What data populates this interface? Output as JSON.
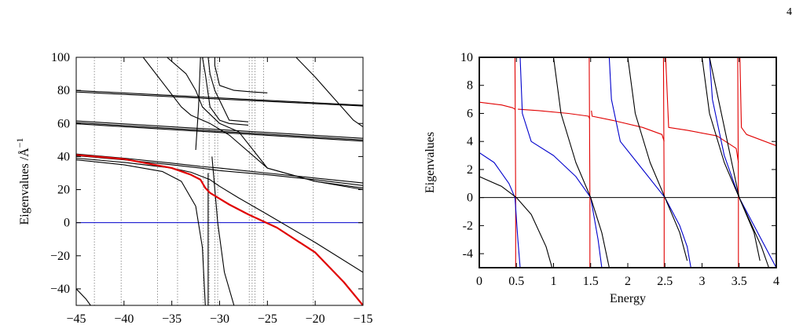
{
  "page": {
    "number": "4"
  },
  "chart_data": [
    {
      "type": "line",
      "title": "",
      "xlabel": "",
      "ylabel": "Eigenvalues /Å",
      "ylabel_superscript": "−1",
      "xlim": [
        -45,
        -15
      ],
      "ylim": [
        -50,
        100
      ],
      "x_ticks": [
        -45,
        -40,
        -35,
        -30,
        -25,
        -20,
        -15
      ],
      "x_tick_labels": [
        "−45",
        "−40",
        "−35",
        "−30",
        "−25",
        "−20",
        "−15"
      ],
      "y_ticks": [
        -40,
        -20,
        0,
        20,
        40,
        60,
        80,
        100
      ],
      "y_tick_labels": [
        "−40",
        "−20",
        "0",
        "20",
        "40",
        "60",
        "80",
        "100"
      ],
      "zero_line_color": "#0000cc",
      "highlight_color": "#e00000",
      "curve_color": "#000000",
      "vertical_dotted_lines_x": [
        -43.1,
        -40.3,
        -36.5,
        -34.4,
        -31.7,
        -31.1,
        -30.5,
        -30.2,
        -26.9,
        -26.6,
        -26.3,
        -25.4,
        -20.2
      ],
      "series": [
        {
          "color": "#000000",
          "x": [
            -45,
            -15
          ],
          "y": [
            79.9,
            71.0
          ]
        },
        {
          "color": "#000000",
          "x": [
            -45,
            -15
          ],
          "y": [
            79.0,
            70.5
          ]
        },
        {
          "color": "#000000",
          "x": [
            -45,
            -15
          ],
          "y": [
            61.5,
            51.0
          ]
        },
        {
          "color": "#000000",
          "x": [
            -45,
            -15
          ],
          "y": [
            60.5,
            50.0
          ]
        },
        {
          "color": "#000000",
          "x": [
            -45,
            -15
          ],
          "y": [
            59.8,
            49.3
          ]
        },
        {
          "color": "#000000",
          "x": [
            -45,
            -40,
            -35,
            -32,
            -30,
            -28,
            -25,
            -20,
            -15
          ],
          "y": [
            41.5,
            39,
            36,
            34,
            33,
            31.8,
            30,
            27,
            24
          ]
        },
        {
          "color": "#000000",
          "x": [
            -45,
            -40,
            -35,
            -32,
            -30,
            -28,
            -25,
            -20,
            -15
          ],
          "y": [
            40.5,
            38,
            35,
            33,
            31.5,
            30.5,
            29,
            26,
            22.5
          ]
        },
        {
          "color": "#000000",
          "x": [
            -45,
            -40,
            -35,
            -33,
            -31,
            -30,
            -28,
            -25,
            -20,
            -15
          ],
          "y": [
            39,
            36.5,
            33,
            30.5,
            26,
            22,
            15,
            5,
            -12,
            -30
          ]
        },
        {
          "color": "#000000",
          "x": [
            -45,
            -40,
            -36,
            -34,
            -32.5,
            -31.8,
            -31.5
          ],
          "y": [
            38,
            35,
            31,
            25,
            10,
            -15,
            -50
          ]
        },
        {
          "color": "#000000",
          "x": [
            -31.2,
            -31.2
          ],
          "y": [
            -50,
            30
          ]
        },
        {
          "color": "#000000",
          "x": [
            -38,
            -36,
            -34,
            -33,
            -31,
            -29,
            -25,
            -20,
            -15
          ],
          "y": [
            100,
            85,
            70,
            65,
            60,
            53,
            33,
            25,
            21
          ]
        },
        {
          "color": "#000000",
          "x": [
            -35.5,
            -33.5,
            -32.5,
            -31.8,
            -30,
            -28,
            -25,
            -20,
            -15
          ],
          "y": [
            100,
            90,
            80,
            70,
            60,
            55,
            33,
            25,
            20
          ]
        },
        {
          "color": "#000000",
          "x": [
            -30.5,
            -30.5,
            -30.0,
            -28.5,
            -26.5,
            -25
          ],
          "y": [
            100,
            95,
            83,
            80,
            79,
            78.5
          ]
        },
        {
          "color": "#000000",
          "x": [
            -31.2,
            -31.0,
            -30.5,
            -29,
            -27
          ],
          "y": [
            100,
            90,
            80,
            62,
            61
          ]
        },
        {
          "color": "#000000",
          "x": [
            -31.8,
            -31.5,
            -31.0,
            -30.0,
            -29,
            -27
          ],
          "y": [
            100,
            90,
            70,
            62,
            60,
            59
          ]
        },
        {
          "color": "#000000",
          "x": [
            -32.0,
            -32.2,
            -32.5
          ],
          "y": [
            100,
            70,
            44
          ]
        },
        {
          "color": "#000000",
          "x": [
            -22,
            -20,
            -18,
            -16,
            -15
          ],
          "y": [
            100,
            88,
            75,
            62,
            58
          ]
        },
        {
          "color": "#000000",
          "x": [
            -30.8,
            -30.2,
            -29.5,
            -28.5
          ],
          "y": [
            40,
            0,
            -30,
            -50
          ]
        },
        {
          "color": "#000000",
          "x": [
            -45,
            -44,
            -43.5
          ],
          "y": [
            -40,
            -46,
            -50
          ]
        },
        {
          "color": "#e00000",
          "x": [
            -45,
            -40,
            -35,
            -33,
            -32,
            -31.5,
            -31,
            -29,
            -27,
            -24,
            -20,
            -17,
            -15
          ],
          "y": [
            41,
            38.5,
            33,
            29,
            26,
            21,
            18,
            11,
            5,
            -3,
            -18,
            -36,
            -50
          ]
        }
      ]
    },
    {
      "type": "line",
      "title": "",
      "xlabel": "Energy",
      "ylabel": "Eigenvalues",
      "xlim": [
        0,
        4
      ],
      "ylim": [
        -5,
        10
      ],
      "x_ticks": [
        0,
        0.5,
        1,
        1.5,
        2,
        2.5,
        3,
        3.5,
        4
      ],
      "x_tick_labels": [
        "0",
        "0.5",
        "1",
        "1.5",
        "2",
        "2.5",
        "3",
        "3.5",
        "4"
      ],
      "y_ticks": [
        -4,
        -2,
        0,
        2,
        4,
        6,
        8,
        10
      ],
      "y_tick_labels": [
        "-4",
        "-2",
        "0",
        "2",
        "4",
        "6",
        "8",
        "10"
      ],
      "zero_line_color": "#000000",
      "series": [
        {
          "color": "#e00000",
          "x": [
            0,
            0.3,
            0.45,
            0.48
          ],
          "y": [
            6.8,
            6.6,
            6.4,
            6.3
          ]
        },
        {
          "color": "#e00000",
          "x": [
            0.48,
            0.49,
            0.49
          ],
          "y": [
            10,
            0,
            -5
          ]
        },
        {
          "color": "#e00000",
          "x": [
            0.52,
            0.8,
            1.2,
            1.47,
            1.49
          ],
          "y": [
            6.3,
            6.2,
            6.0,
            5.8,
            5.6
          ]
        },
        {
          "color": "#e00000",
          "x": [
            1.48,
            1.49,
            1.49
          ],
          "y": [
            10,
            0,
            -5
          ]
        },
        {
          "color": "#e00000",
          "x": [
            1.51,
            1.52,
            1.8,
            2.2,
            2.46,
            2.49
          ],
          "y": [
            6.2,
            5.8,
            5.5,
            5.0,
            4.5,
            4.0
          ]
        },
        {
          "color": "#e00000",
          "x": [
            2.48,
            2.49,
            2.49
          ],
          "y": [
            10,
            0,
            -5
          ]
        },
        {
          "color": "#e00000",
          "x": [
            2.51,
            2.55,
            2.8,
            3.2,
            3.46,
            3.49
          ],
          "y": [
            10,
            5.0,
            4.8,
            4.4,
            3.5,
            2.5
          ]
        },
        {
          "color": "#e00000",
          "x": [
            3.48,
            3.49,
            3.49
          ],
          "y": [
            10,
            0,
            -5
          ]
        },
        {
          "color": "#e00000",
          "x": [
            3.51,
            3.53,
            3.6,
            4.0
          ],
          "y": [
            10,
            5.0,
            4.5,
            3.7
          ]
        },
        {
          "color": "#0000cc",
          "x": [
            0,
            0.2,
            0.4,
            0.48,
            0.52,
            0.55
          ],
          "y": [
            3.2,
            2.5,
            1.0,
            0,
            -3,
            -5
          ]
        },
        {
          "color": "#0000cc",
          "x": [
            0.55,
            0.58,
            0.7,
            1.0,
            1.3,
            1.5,
            1.6,
            1.65
          ],
          "y": [
            10,
            6,
            4,
            3,
            1.5,
            0,
            -3,
            -5
          ]
        },
        {
          "color": "#0000cc",
          "x": [
            1.75,
            1.78,
            1.9,
            2.2,
            2.5,
            2.7,
            2.8,
            2.85
          ],
          "y": [
            10,
            7,
            4,
            2,
            0,
            -2,
            -3.5,
            -5
          ]
        },
        {
          "color": "#0000cc",
          "x": [
            3.1,
            3.14,
            3.3,
            3.5,
            3.8,
            4.0
          ],
          "y": [
            10,
            7,
            3,
            0,
            -3,
            -5
          ]
        },
        {
          "color": "#000000",
          "x": [
            0,
            0.3,
            0.5,
            0.7,
            0.9,
            0.98
          ],
          "y": [
            1.5,
            0.8,
            0,
            -1.2,
            -3.5,
            -5
          ]
        },
        {
          "color": "#000000",
          "x": [
            1.0,
            1.1,
            1.3,
            1.5,
            1.65,
            1.75
          ],
          "y": [
            10,
            6,
            2.5,
            0,
            -2.5,
            -5
          ]
        },
        {
          "color": "#000000",
          "x": [
            2.0,
            2.1,
            2.3,
            2.5,
            2.7,
            2.8
          ],
          "y": [
            10,
            6,
            2.5,
            0,
            -2.5,
            -4.5
          ]
        },
        {
          "color": "#000000",
          "x": [
            3.0,
            3.1,
            3.3,
            3.5,
            3.7,
            3.78
          ],
          "y": [
            10,
            6,
            2.5,
            0,
            -2.5,
            -4.5
          ]
        },
        {
          "color": "#000000",
          "x": [
            3.1,
            3.5,
            3.8,
            3.9
          ],
          "y": [
            10,
            0,
            -3.5,
            -5
          ]
        }
      ]
    }
  ]
}
